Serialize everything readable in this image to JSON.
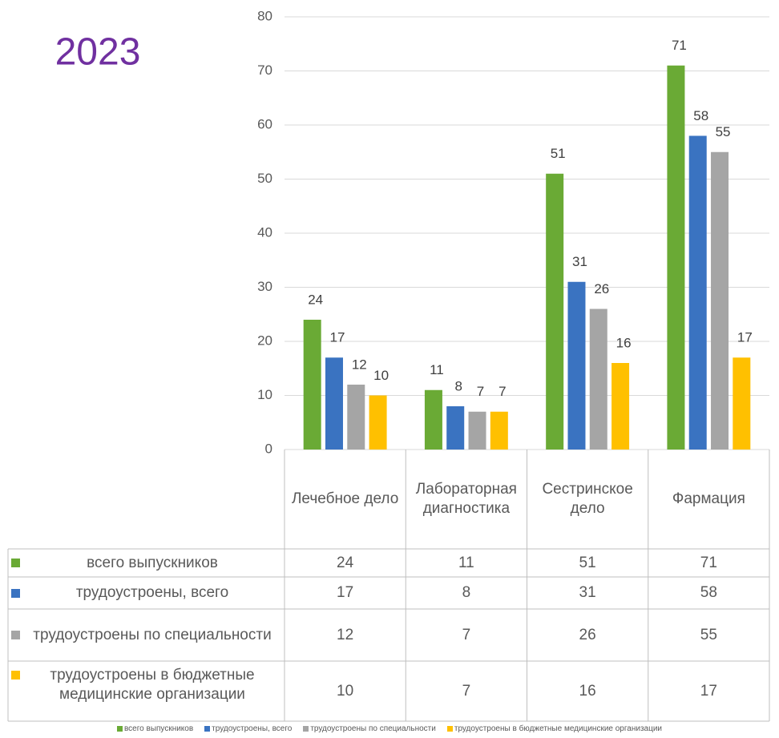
{
  "chart_data": {
    "type": "bar",
    "title": "2023",
    "categories": [
      "Лечебное дело",
      "Лабораторная диагностика",
      "Сестринское дело",
      "Фармация"
    ],
    "series": [
      {
        "name": "всего выпускников",
        "color": "#6aaa35",
        "values": [
          24,
          11,
          51,
          71
        ]
      },
      {
        "name": "трудоустроены, всего",
        "color": "#3a73c1",
        "values": [
          17,
          8,
          31,
          58
        ]
      },
      {
        "name": "трудоустроены по специальности",
        "color": "#a5a5a5",
        "values": [
          12,
          7,
          26,
          55
        ]
      },
      {
        "name": "трудоустроены в бюджетные медицинские организации",
        "color": "#ffc000",
        "values": [
          10,
          7,
          16,
          17
        ]
      }
    ],
    "ylim": [
      0,
      80
    ],
    "yticks": [
      0,
      10,
      20,
      30,
      40,
      50,
      60,
      70,
      80
    ],
    "grid": true
  }
}
